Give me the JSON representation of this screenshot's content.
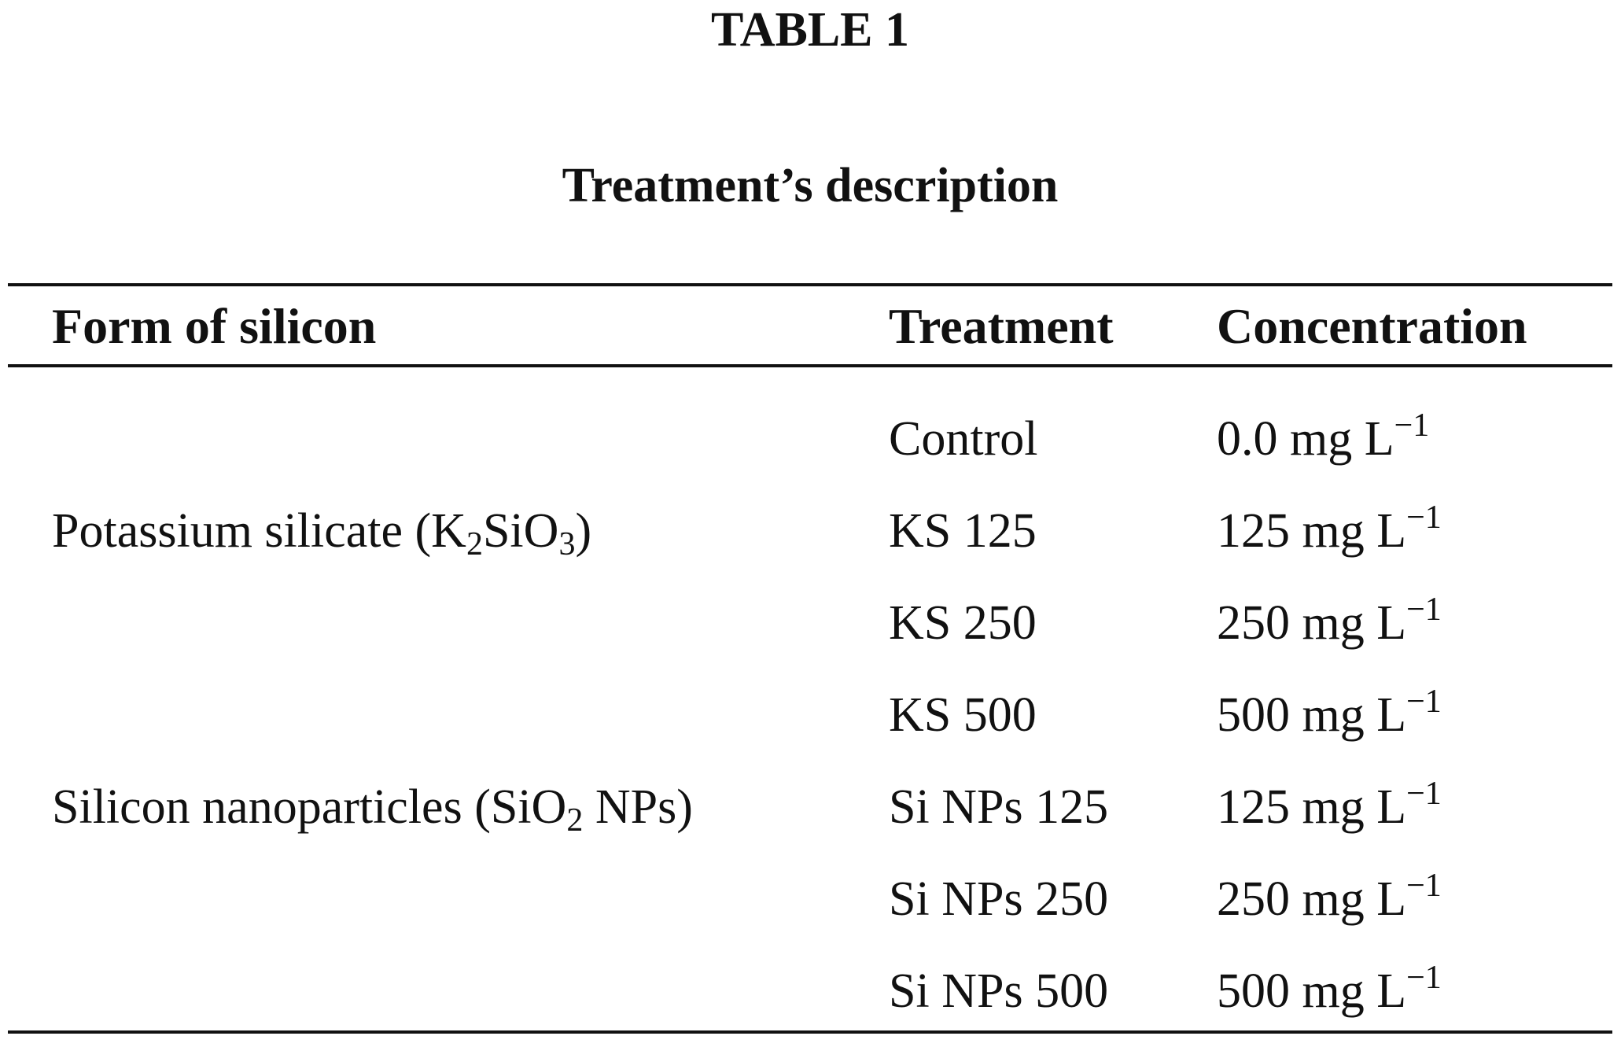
{
  "table": {
    "title": "TABLE 1",
    "subtitle": "Treatment’s description",
    "header": [
      "Form of silicon",
      "Treatment",
      "Concentration"
    ],
    "rows": [
      {
        "treatment": "Control",
        "concentration": [
          "0.0 mg L",
          {
            "text": "−1",
            "script": "sup"
          }
        ]
      },
      {
        "form": [
          "Potassium silicate (K",
          {
            "text": "2",
            "script": "sub"
          },
          "SiO",
          {
            "text": "3",
            "script": "sub"
          },
          ")"
        ],
        "treatment": "KS 125",
        "concentration": [
          "125 mg L",
          {
            "text": "−1",
            "script": "sup"
          }
        ]
      },
      {
        "treatment": "KS 250",
        "concentration": [
          "250 mg L",
          {
            "text": "−1",
            "script": "sup"
          }
        ]
      },
      {
        "treatment": "KS 500",
        "concentration": [
          "500 mg L",
          {
            "text": "−1",
            "script": "sup"
          }
        ]
      },
      {
        "form": [
          "Silicon nanoparticles (SiO",
          {
            "text": "2",
            "script": "sub"
          },
          " NPs)"
        ],
        "treatment": "Si NPs 125",
        "concentration": [
          "125 mg L",
          {
            "text": "−1",
            "script": "sup"
          }
        ]
      },
      {
        "treatment": "Si NPs 250",
        "concentration": [
          "250 mg L",
          {
            "text": "−1",
            "script": "sup"
          }
        ]
      },
      {
        "treatment": "Si NPs 500",
        "concentration": [
          "500 mg L",
          {
            "text": "−1",
            "script": "sup"
          }
        ]
      }
    ]
  }
}
